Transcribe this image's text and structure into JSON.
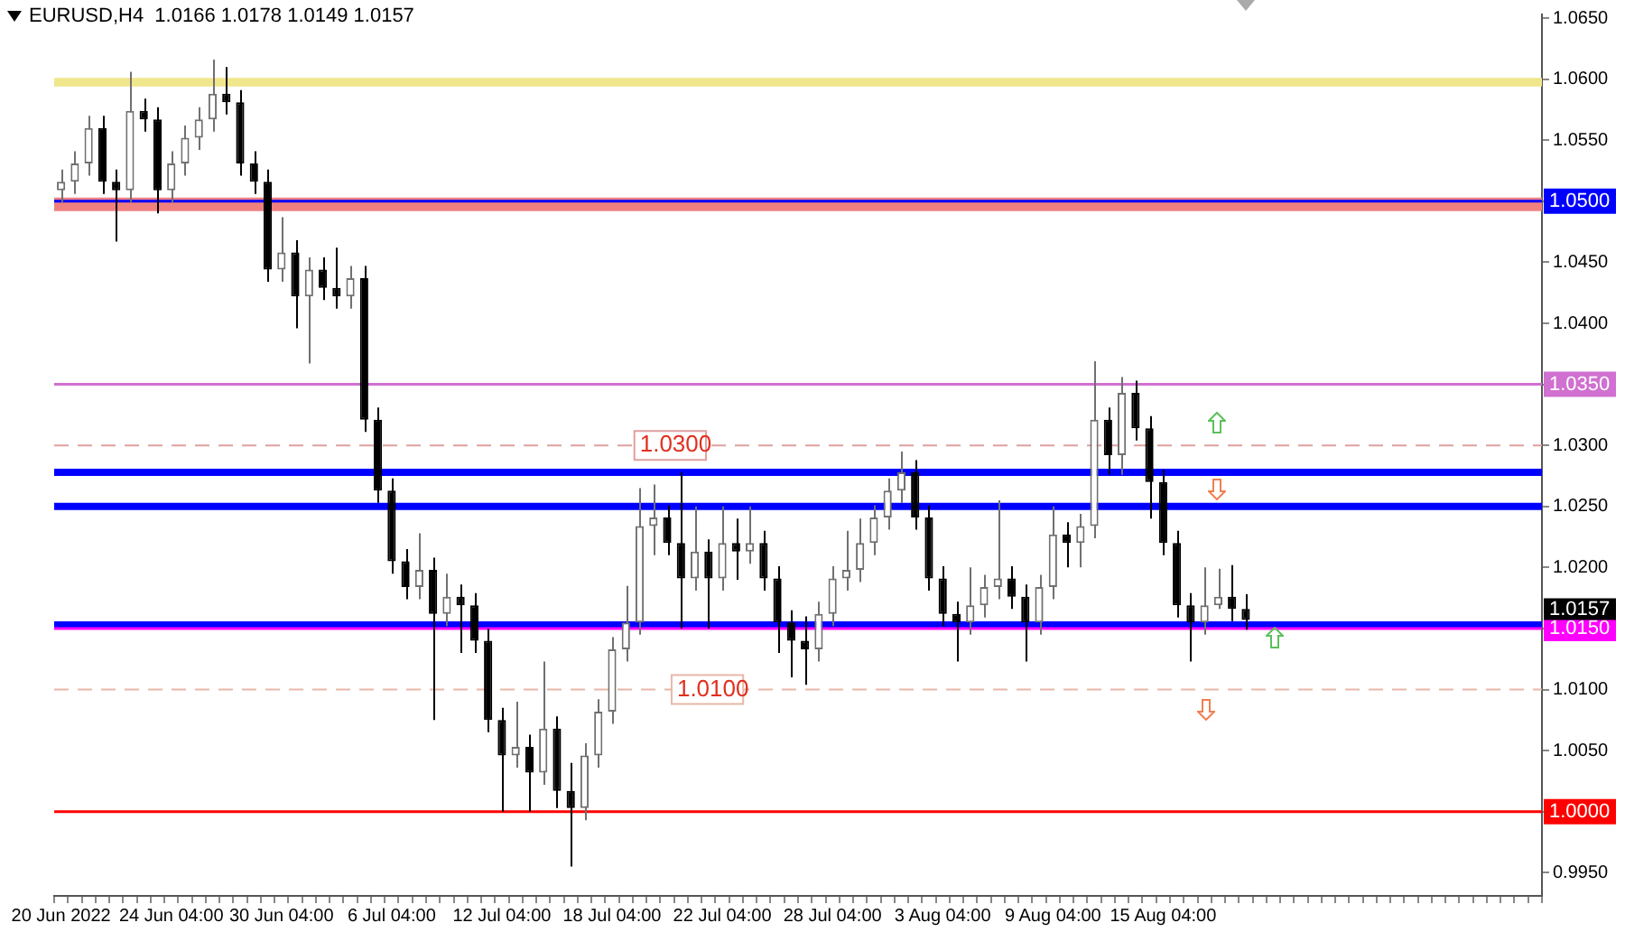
{
  "chart_data": {
    "type": "candlestick",
    "title": "EURUSD,H4  1.0166 1.0178 1.0149 1.0157",
    "categories": [
      "20 Jun 2022",
      null,
      null,
      null,
      null,
      null,
      null,
      null,
      "24 Jun 04:00",
      null,
      null,
      null,
      null,
      null,
      null,
      null,
      "30 Jun 04:00",
      null,
      null,
      null,
      null,
      null,
      null,
      null,
      "6 Jul 04:00",
      null,
      null,
      null,
      null,
      null,
      null,
      null,
      "12 Jul 04:00",
      null,
      null,
      null,
      null,
      null,
      null,
      null,
      "18 Jul 04:00",
      null,
      null,
      null,
      null,
      null,
      null,
      null,
      "22 Jul 04:00",
      null,
      null,
      null,
      null,
      null,
      null,
      null,
      "28 Jul 04:00",
      null,
      null,
      null,
      null,
      null,
      null,
      null,
      "3 Aug 04:00",
      null,
      null,
      null,
      null,
      null,
      null,
      null,
      "9 Aug 04:00",
      null,
      null,
      null,
      null,
      null,
      null,
      null,
      "15 Aug 04:00",
      null,
      null,
      null,
      null,
      null,
      null,
      null,
      null,
      null,
      null,
      null,
      null,
      null,
      null,
      null,
      null,
      null,
      null,
      null,
      null,
      null,
      null,
      null,
      null,
      null,
      null,
      null
    ],
    "ohlc": [
      [
        1.0509,
        1.0526,
        1.0499,
        1.0516
      ],
      [
        1.0516,
        1.0541,
        1.0506,
        1.0531
      ],
      [
        1.0531,
        1.057,
        1.0521,
        1.056
      ],
      [
        1.056,
        1.057,
        1.0506,
        1.0516
      ],
      [
        1.0516,
        1.0526,
        1.0467,
        1.0509
      ],
      [
        1.0509,
        1.0606,
        1.0499,
        1.0574
      ],
      [
        1.0574,
        1.0584,
        1.0557,
        1.0567
      ],
      [
        1.0567,
        1.0577,
        1.049,
        1.0509
      ],
      [
        1.0509,
        1.0541,
        1.0499,
        1.0531
      ],
      [
        1.0531,
        1.0562,
        1.0521,
        1.0552
      ],
      [
        1.0552,
        1.0577,
        1.0542,
        1.0567
      ],
      [
        1.0567,
        1.0616,
        1.0557,
        1.0588
      ],
      [
        1.0588,
        1.061,
        1.0571,
        1.0581
      ],
      [
        1.0581,
        1.0591,
        1.0521,
        1.0531
      ],
      [
        1.0531,
        1.0541,
        1.0506,
        1.0516
      ],
      [
        1.0516,
        1.0526,
        1.0434,
        1.0444
      ],
      [
        1.0444,
        1.0487,
        1.0434,
        1.0458
      ],
      [
        1.0458,
        1.0468,
        1.0396,
        1.0422
      ],
      [
        1.0422,
        1.0454,
        1.0367,
        1.0444
      ],
      [
        1.0444,
        1.0454,
        1.0419,
        1.0429
      ],
      [
        1.0429,
        1.0462,
        1.0412,
        1.0422
      ],
      [
        1.0422,
        1.0447,
        1.0412,
        1.0437
      ],
      [
        1.0437,
        1.0447,
        1.0311,
        1.0321
      ],
      [
        1.0321,
        1.0331,
        1.0253,
        1.0263
      ],
      [
        1.0263,
        1.0273,
        1.0195,
        1.0205
      ],
      [
        1.0205,
        1.0215,
        1.0174,
        1.0184
      ],
      [
        1.0184,
        1.0228,
        1.0174,
        1.0198
      ],
      [
        1.0198,
        1.0208,
        1.0075,
        1.0162
      ],
      [
        1.0162,
        1.0195,
        1.0152,
        1.0176
      ],
      [
        1.0176,
        1.0186,
        1.013,
        1.0169
      ],
      [
        1.0169,
        1.0179,
        1.013,
        1.014
      ],
      [
        1.014,
        1.015,
        1.0065,
        1.0075
      ],
      [
        1.0075,
        1.0085,
        1.0,
        1.0046
      ],
      [
        1.0046,
        1.009,
        1.0036,
        1.0053
      ],
      [
        1.0053,
        1.0063,
        1.0,
        1.0032
      ],
      [
        1.0032,
        1.0123,
        1.0022,
        1.0068
      ],
      [
        1.0068,
        1.0078,
        1.0003,
        1.0017
      ],
      [
        1.0017,
        1.004,
        0.9955,
        1.0003
      ],
      [
        1.0003,
        1.0056,
        0.9993,
        1.0046
      ],
      [
        1.0046,
        1.0092,
        1.0036,
        1.0082
      ],
      [
        1.0082,
        1.0143,
        1.0072,
        1.0133
      ],
      [
        1.0133,
        1.0185,
        1.0123,
        1.0155
      ],
      [
        1.0155,
        1.0265,
        1.0145,
        1.0234
      ],
      [
        1.0234,
        1.0268,
        1.021,
        1.0241
      ],
      [
        1.0241,
        1.0251,
        1.021,
        1.022
      ],
      [
        1.022,
        1.0278,
        1.015,
        1.0191
      ],
      [
        1.0191,
        1.025,
        1.0181,
        1.0213
      ],
      [
        1.0213,
        1.0223,
        1.015,
        1.0191
      ],
      [
        1.0191,
        1.025,
        1.0181,
        1.022
      ],
      [
        1.022,
        1.024,
        1.019,
        1.0213
      ],
      [
        1.0213,
        1.025,
        1.0203,
        1.022
      ],
      [
        1.022,
        1.023,
        1.0181,
        1.0191
      ],
      [
        1.0191,
        1.0201,
        1.013,
        1.0155
      ],
      [
        1.0155,
        1.0165,
        1.011,
        1.014
      ],
      [
        1.014,
        1.016,
        1.0104,
        1.0133
      ],
      [
        1.0133,
        1.0172,
        1.0123,
        1.0162
      ],
      [
        1.0162,
        1.0201,
        1.0152,
        1.0191
      ],
      [
        1.0191,
        1.023,
        1.0181,
        1.0198
      ],
      [
        1.0198,
        1.024,
        1.0188,
        1.022
      ],
      [
        1.022,
        1.0251,
        1.021,
        1.0241
      ],
      [
        1.0241,
        1.0273,
        1.0231,
        1.0263
      ],
      [
        1.0263,
        1.0295,
        1.0253,
        1.0278
      ],
      [
        1.0278,
        1.0288,
        1.0231,
        1.0241
      ],
      [
        1.0241,
        1.0251,
        1.0181,
        1.0191
      ],
      [
        1.0191,
        1.0201,
        1.0152,
        1.0162
      ],
      [
        1.0162,
        1.0172,
        1.0123,
        1.0155
      ],
      [
        1.0155,
        1.02,
        1.0145,
        1.0169
      ],
      [
        1.0169,
        1.0194,
        1.0159,
        1.0184
      ],
      [
        1.0184,
        1.0255,
        1.0174,
        1.0191
      ],
      [
        1.0191,
        1.0201,
        1.0166,
        1.0176
      ],
      [
        1.0176,
        1.0186,
        1.0123,
        1.0155
      ],
      [
        1.0155,
        1.0194,
        1.0145,
        1.0184
      ],
      [
        1.0184,
        1.025,
        1.0174,
        1.0227
      ],
      [
        1.0227,
        1.0237,
        1.02,
        1.022
      ],
      [
        1.022,
        1.0244,
        1.02,
        1.0234
      ],
      [
        1.0234,
        1.0369,
        1.0224,
        1.0321
      ],
      [
        1.0321,
        1.0331,
        1.0276,
        1.0292
      ],
      [
        1.0292,
        1.0356,
        1.0276,
        1.0343
      ],
      [
        1.0343,
        1.0353,
        1.0304,
        1.0314
      ],
      [
        1.0314,
        1.0324,
        1.024,
        1.027
      ],
      [
        1.027,
        1.028,
        1.021,
        1.022
      ],
      [
        1.022,
        1.023,
        1.0159,
        1.0169
      ],
      [
        1.0169,
        1.0179,
        1.0123,
        1.0155
      ],
      [
        1.0155,
        1.02,
        1.0145,
        1.0169
      ],
      [
        1.0169,
        1.0199,
        1.0166,
        1.0176
      ],
      [
        1.0176,
        1.0202,
        1.0156,
        1.0166
      ],
      [
        1.0166,
        1.0178,
        1.0149,
        1.0157
      ],
      null,
      null,
      null,
      null,
      null,
      null,
      null,
      null,
      null,
      null,
      null,
      null,
      null,
      null,
      null,
      null,
      null,
      null,
      null,
      null,
      null
    ],
    "colors": [
      "#707070",
      "#707070",
      "#707070",
      "#000000",
      "#000000",
      "#707070",
      "#000000",
      "#000000",
      "#707070",
      "#707070",
      "#707070",
      "#707070",
      "#000000",
      "#000000",
      "#000000",
      "#000000",
      "#707070",
      "#000000",
      "#707070",
      "#000000",
      "#000000",
      "#707070",
      "#000000",
      "#000000",
      "#000000",
      "#000000",
      "#707070",
      "#000000",
      "#707070",
      "#000000",
      "#000000",
      "#000000",
      "#000000",
      "#707070",
      "#000000",
      "#707070",
      "#000000",
      "#000000",
      "#707070",
      "#707070",
      "#707070",
      "#707070",
      "#707070",
      "#707070",
      "#000000",
      "#000000",
      "#707070",
      "#000000",
      "#707070",
      "#000000",
      "#707070",
      "#000000",
      "#000000",
      "#000000",
      "#000000",
      "#707070",
      "#707070",
      "#707070",
      "#707070",
      "#707070",
      "#707070",
      "#707070",
      "#000000",
      "#000000",
      "#000000",
      "#000000",
      "#707070",
      "#707070",
      "#707070",
      "#000000",
      "#000000",
      "#707070",
      "#707070",
      "#000000",
      "#707070",
      "#707070",
      "#000000",
      "#707070",
      "#000000",
      "#000000",
      "#000000",
      "#000000",
      "#000000",
      "#707070",
      "#707070",
      "#000000",
      "#000000",
      null,
      null,
      null,
      null,
      null,
      null,
      null,
      null,
      null,
      null,
      null,
      null,
      null,
      null,
      null,
      null,
      null,
      null,
      null,
      null,
      null
    ],
    "ylim": [
      0.9931,
      1.0653
    ],
    "yticks": [
      {
        "value": 0.995,
        "label": "0.9950"
      },
      {
        "value": 1.0,
        "label": null
      },
      {
        "value": 1.005,
        "label": "1.0050"
      },
      {
        "value": 1.01,
        "label": "1.0100"
      },
      {
        "value": 1.015,
        "label": null
      },
      {
        "value": 1.02,
        "label": "1.0200"
      },
      {
        "value": 1.025,
        "label": "1.0250"
      },
      {
        "value": 1.03,
        "label": "1.0300"
      },
      {
        "value": 1.035,
        "label": null
      },
      {
        "value": 1.04,
        "label": "1.0400"
      },
      {
        "value": 1.045,
        "label": "1.0450"
      },
      {
        "value": 1.05,
        "label": null
      },
      {
        "value": 1.055,
        "label": "1.0550"
      },
      {
        "value": 1.06,
        "label": "1.0600"
      },
      {
        "value": 1.065,
        "label": "1.0650"
      }
    ],
    "bands": [
      {
        "axis": "y",
        "from": 1.0594,
        "to": 1.0601,
        "color": "#f0e68c"
      },
      {
        "axis": "y",
        "from": 1.0492,
        "to": 1.0503,
        "color": "#f08080"
      }
    ],
    "ref_lines": [
      {
        "axis": "y",
        "value": 1.05,
        "label": "1.0500",
        "color": "#0000ff",
        "line_style": "solid"
      },
      {
        "axis": "y",
        "value": 1.035,
        "label": "1.0350",
        "color": "#d070d0",
        "line_style": "solid"
      },
      {
        "axis": "y",
        "value": 1.03,
        "label": "1.0300",
        "color": "#e0a0a0",
        "line_style": "dashed"
      },
      {
        "axis": "y",
        "value": 1.0278,
        "color": "#0000ff",
        "line_style": "solid"
      },
      {
        "axis": "y",
        "value": 1.025,
        "color": "#0000ff",
        "line_style": "solid"
      },
      {
        "axis": "y",
        "value": 1.0153,
        "color": "#0000ff",
        "line_style": "solid"
      },
      {
        "axis": "y",
        "value": 1.015,
        "label": "1.0150",
        "color": "#ff00ff",
        "line_style": "solid"
      },
      {
        "axis": "y",
        "value": 1.01,
        "label": "1.0100",
        "color": "#e8b8a8",
        "line_style": "dashed"
      },
      {
        "axis": "y",
        "value": 1.0,
        "label": "1.0000",
        "color": "#ff0000",
        "line_style": "solid"
      }
    ],
    "annotations": [
      "1.0157"
    ],
    "grid": false,
    "legend": false
  }
}
